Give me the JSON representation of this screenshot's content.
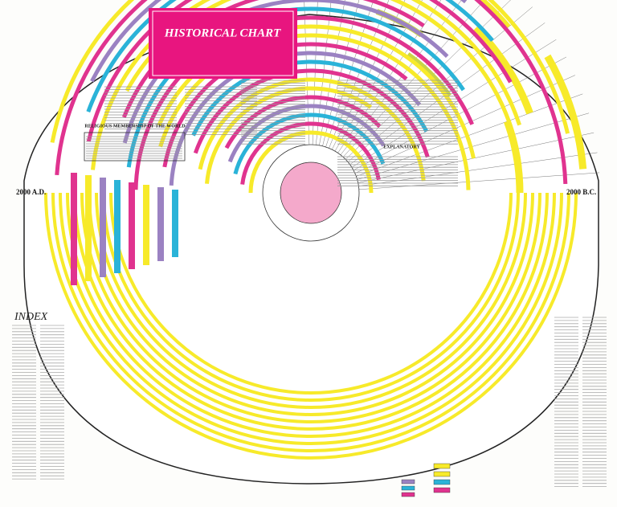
{
  "poster": {
    "title": "HISTORICAL CHART",
    "index_heading": "INDEX",
    "left_date": "2000 A.D.",
    "right_date": "2000 B.C.",
    "table_heading": "RELIGIOUS MEMBERSHIP OF THE WORLD",
    "explanatory_heading": "EXPLANATORY"
  }
}
